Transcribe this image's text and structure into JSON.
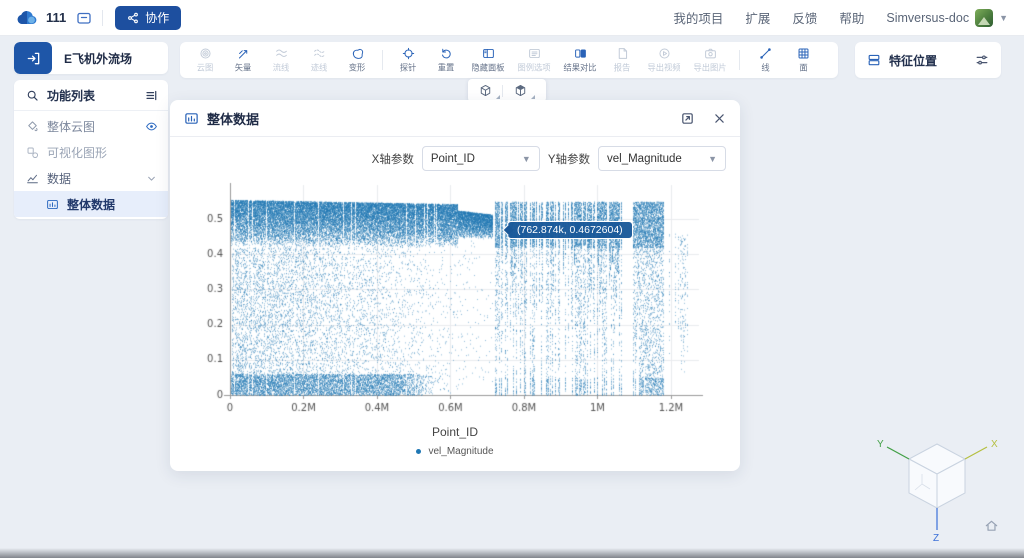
{
  "topbar": {
    "workspace_name": "111",
    "collab_button": "协作",
    "nav": [
      "我的项目",
      "扩展",
      "反馈",
      "帮助"
    ],
    "account_name": "Simversus-doc"
  },
  "sidebar": {
    "project_title": "E飞机外流场",
    "list_header": "功能列表",
    "items": [
      {
        "name": "global-contour",
        "label": "整体云图",
        "icon": "paint",
        "trailing": "eye",
        "state": "normal"
      },
      {
        "name": "visual-graphics",
        "label": "可视化图形",
        "icon": "shapes",
        "trailing": "",
        "state": "muted"
      },
      {
        "name": "data",
        "label": "数据",
        "icon": "chart",
        "trailing": "chevron",
        "state": "dark"
      },
      {
        "name": "overall-data",
        "label": "整体数据",
        "icon": "panel",
        "trailing": "",
        "state": "selected"
      }
    ]
  },
  "toolbar": {
    "groups": [
      {
        "items": [
          {
            "name": "contour-map",
            "label": "云图",
            "icon": "contour",
            "enabled": false
          },
          {
            "name": "vector",
            "label": "矢量",
            "icon": "vector",
            "enabled": true
          },
          {
            "name": "streamline",
            "label": "流线",
            "icon": "streamline",
            "enabled": false
          },
          {
            "name": "pathline",
            "label": "迹线",
            "icon": "pathline",
            "enabled": false
          },
          {
            "name": "deform",
            "label": "变形",
            "icon": "deform",
            "enabled": true
          }
        ]
      },
      {
        "items": [
          {
            "name": "probe",
            "label": "探针",
            "icon": "probe",
            "enabled": true
          },
          {
            "name": "reset",
            "label": "重置",
            "icon": "reset",
            "enabled": true
          },
          {
            "name": "hide-panel",
            "label": "隐藏面板",
            "icon": "hidepanel",
            "enabled": true
          },
          {
            "name": "legend-options",
            "label": "图例选项",
            "icon": "legendopt",
            "enabled": false
          },
          {
            "name": "result-compare",
            "label": "结果对比",
            "icon": "compare",
            "enabled": true
          },
          {
            "name": "report",
            "label": "报告",
            "icon": "report",
            "enabled": false
          },
          {
            "name": "export-video",
            "label": "导出视频",
            "icon": "exportvideo",
            "enabled": false
          },
          {
            "name": "export-image",
            "label": "导出图片",
            "icon": "exportimage",
            "enabled": false
          }
        ]
      },
      {
        "items": [
          {
            "name": "line",
            "label": "线",
            "icon": "line",
            "enabled": true
          },
          {
            "name": "face",
            "label": "面",
            "icon": "face",
            "enabled": true
          }
        ]
      }
    ]
  },
  "view_toolbar": {
    "buttons": [
      {
        "name": "wireframe-view",
        "icon": "wirecube"
      },
      {
        "name": "solid-view",
        "icon": "solidcube"
      }
    ]
  },
  "feature_panel": {
    "title": "特征位置"
  },
  "chart_panel": {
    "title": "整体数据",
    "x_param_label": "X轴参数",
    "x_param_value": "Point_ID",
    "y_param_label": "Y轴参数",
    "y_param_value": "vel_Magnitude"
  },
  "chart_data": {
    "type": "scatter",
    "series": [
      {
        "name": "vel_Magnitude",
        "color": "#1f77b4"
      }
    ],
    "xlabel": "Point_ID",
    "xlim": [
      0,
      1260000
    ],
    "ylim": [
      0,
      0.58
    ],
    "x_ticks": [
      {
        "value": 0,
        "label": "0"
      },
      {
        "value": 200000,
        "label": "0.2M"
      },
      {
        "value": 400000,
        "label": "0.4M"
      },
      {
        "value": 600000,
        "label": "0.6M"
      },
      {
        "value": 800000,
        "label": "0.8M"
      },
      {
        "value": 1000000,
        "label": "1M"
      },
      {
        "value": 1200000,
        "label": "1.2M"
      }
    ],
    "y_ticks": [
      {
        "value": 0,
        "label": "0"
      },
      {
        "value": 0.1,
        "label": "0.1"
      },
      {
        "value": 0.2,
        "label": "0.2"
      },
      {
        "value": 0.3,
        "label": "0.3"
      },
      {
        "value": 0.4,
        "label": "0.4"
      },
      {
        "value": 0.5,
        "label": "0.5"
      }
    ],
    "grid": true,
    "legend_position": "bottom-center",
    "tooltip": {
      "text": "(762.874k, 0.4672604)",
      "x": 762874,
      "y": 0.4672604
    },
    "regions": [
      {
        "kind": "cloud",
        "x0": 4000,
        "x1": 620000,
        "topBand": {
          "yMin": 0.42,
          "yMax": 0.555,
          "density": 90
        },
        "body": {
          "yMin": 0.005,
          "yMax": 0.42,
          "densityStart": 55,
          "densityEnd": 3
        },
        "bottomBand": {
          "yMin": 0.0,
          "yMax": 0.06,
          "density": 26,
          "fadeAfter": 0.72
        },
        "gapChance": 0.07
      },
      {
        "kind": "cloud",
        "x0": 620000,
        "x1": 715000,
        "topBand": {
          "yMin": 0.445,
          "yMax": 0.525,
          "density": 75
        },
        "body": {
          "yMin": 0.02,
          "yMax": 0.44,
          "densityStart": 4,
          "densityEnd": 1
        },
        "gapChance": 0.05
      },
      {
        "kind": "bars",
        "x0": 715000,
        "x1": 1065000,
        "gapChance": 0.24,
        "fullChance": 0.55,
        "topBand": [
          0.42,
          0.55
        ],
        "topDensity": 70,
        "fullDensity": 45,
        "partialYMin": [
          0.08,
          0.38
        ],
        "partialDensity": 28
      },
      {
        "kind": "empty",
        "x0": 1065000,
        "x1": 1095000
      },
      {
        "kind": "bars",
        "x0": 1095000,
        "x1": 1180000,
        "gapChance": 0.12,
        "fullChance": 0.72,
        "topBand": [
          0.42,
          0.55
        ],
        "topDensity": 70,
        "fullDensity": 45,
        "partialYMin": [
          0.08,
          0.3
        ],
        "partialDensity": 28
      },
      {
        "kind": "bars",
        "x0": 1192000,
        "x1": 1248000,
        "gapChance": 0.5,
        "fullChance": 0.0,
        "topBand": [
          0.34,
          0.46
        ],
        "topDensity": 8,
        "fullDensity": 0,
        "partialYMin": [
          0.02,
          0.2
        ],
        "partialDensity": 14
      }
    ]
  },
  "gizmo": {
    "x_label": "X",
    "y_label": "Y",
    "z_label": "Z"
  }
}
